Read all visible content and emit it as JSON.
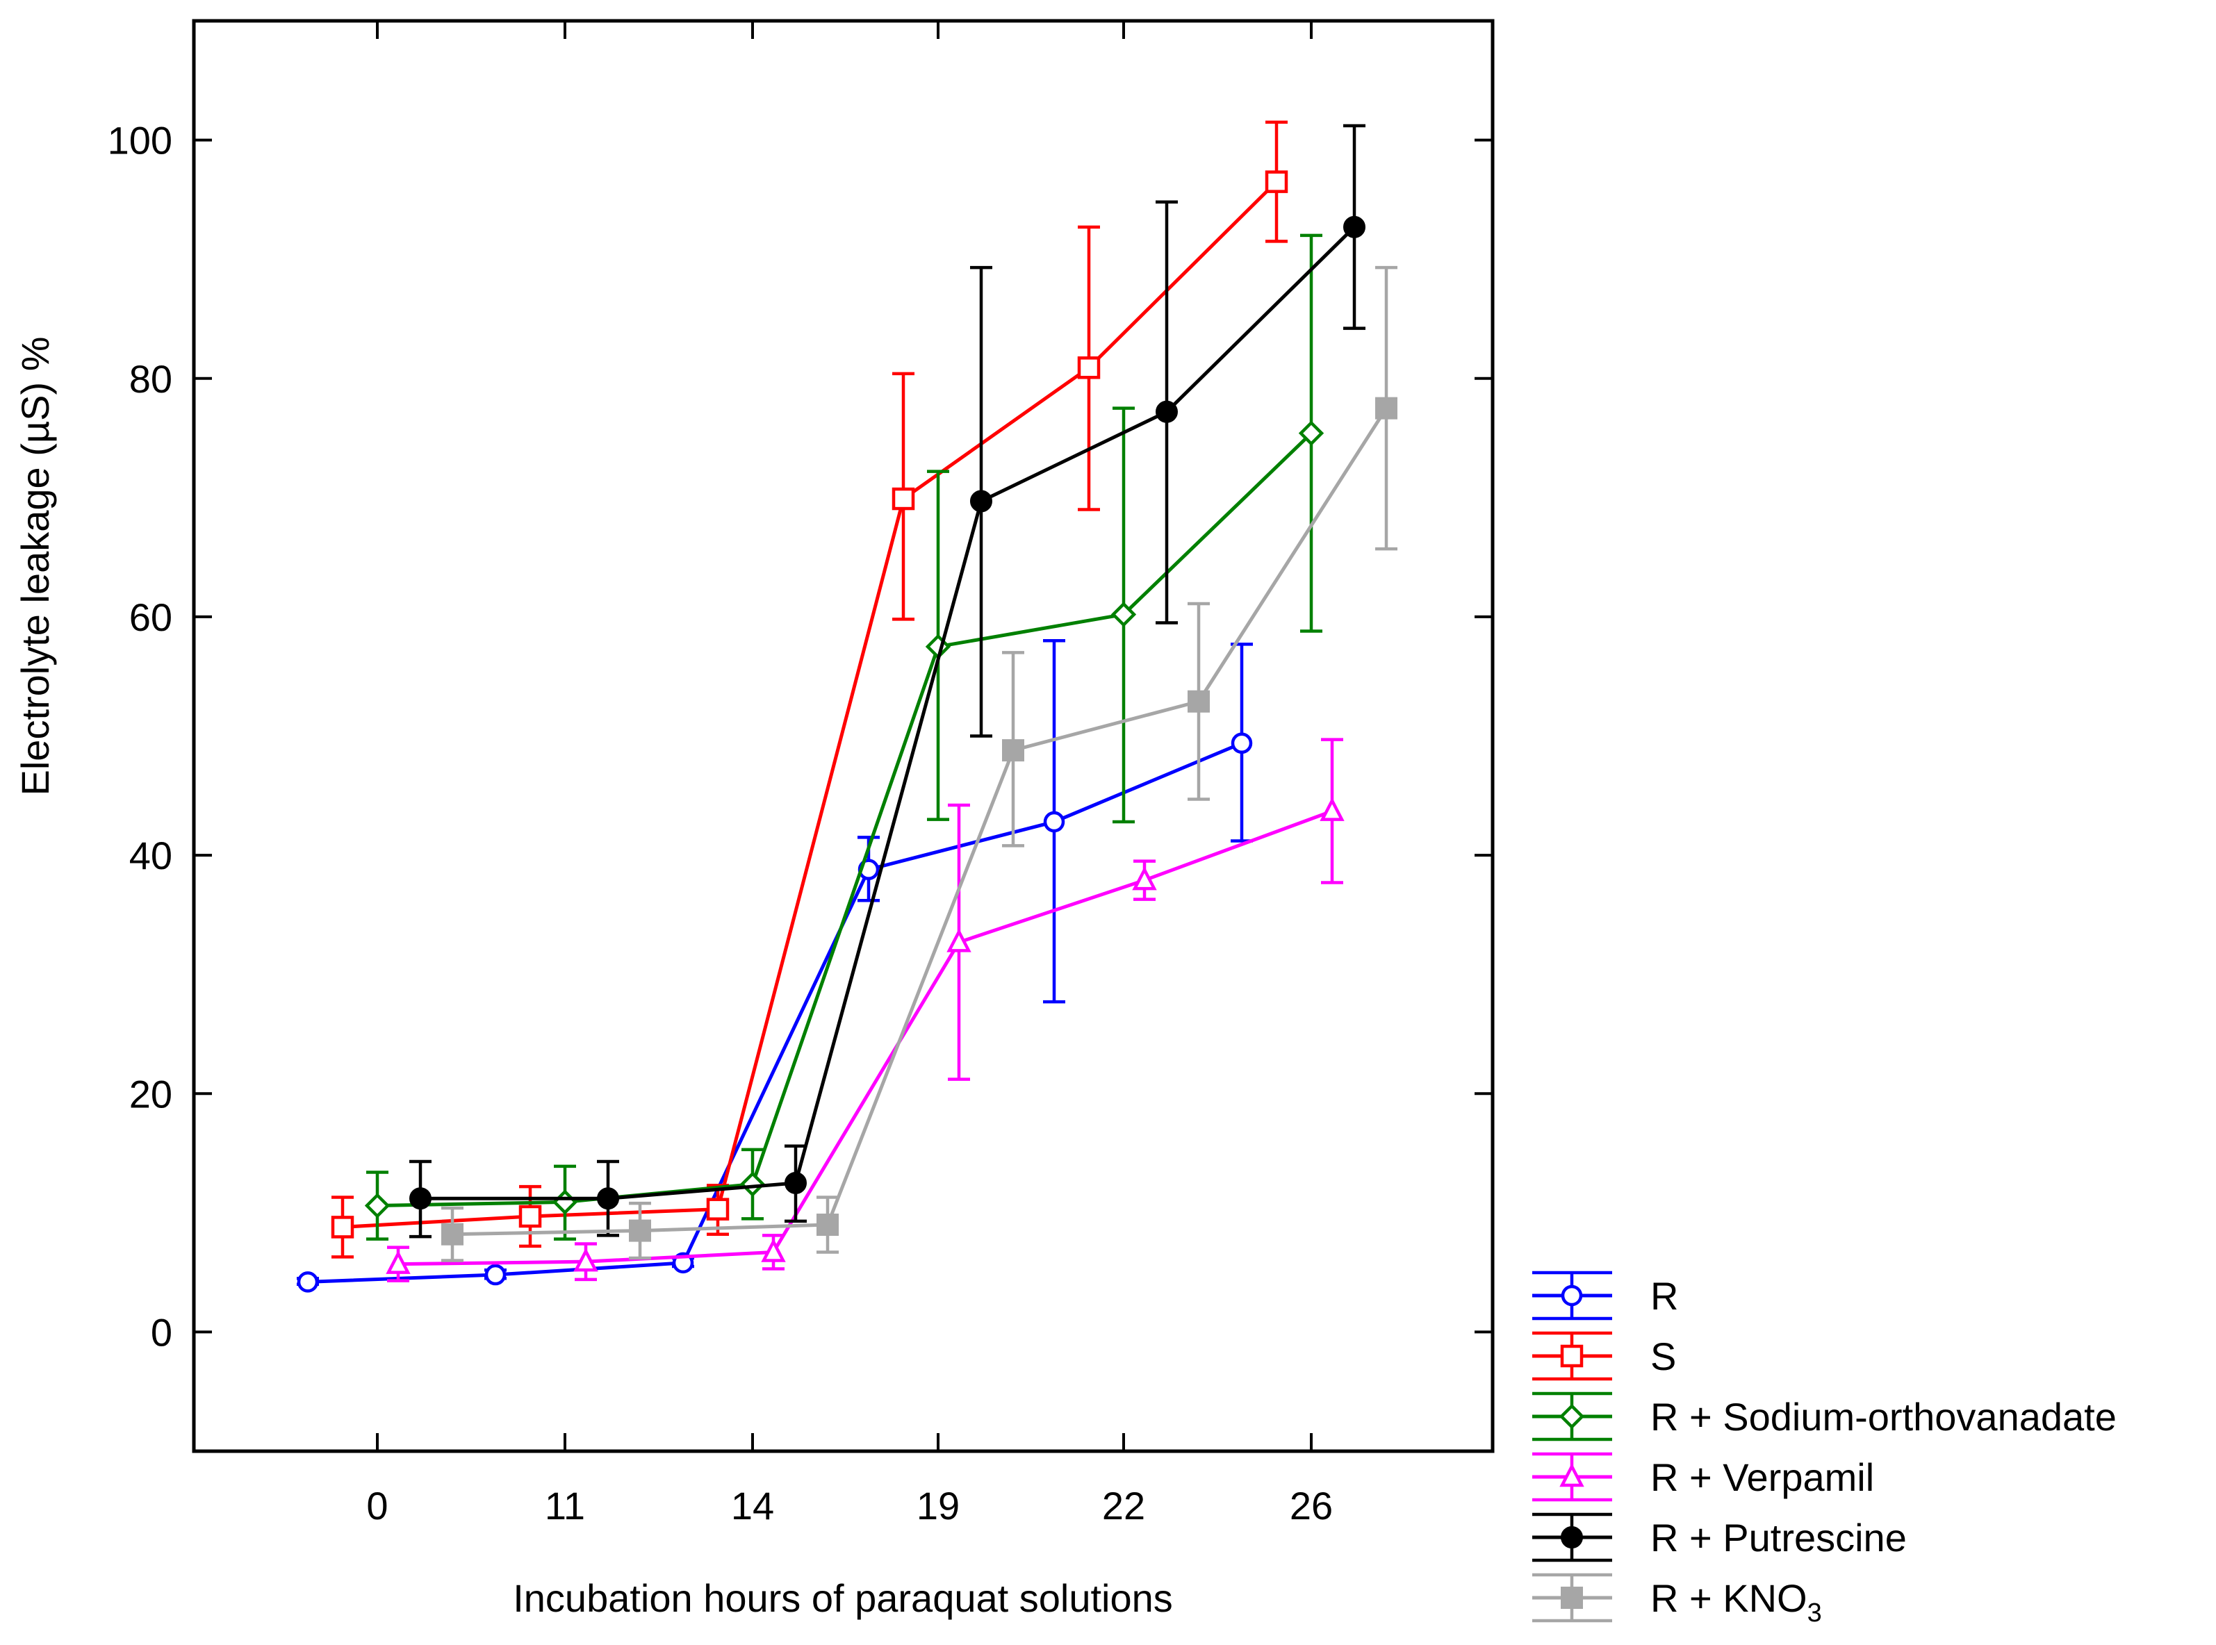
{
  "chart_data": {
    "type": "line",
    "title": "",
    "xlabel": "Incubation hours of paraquat solutions",
    "ylabel": "Electrolyte leakage (µS) %",
    "categories": [
      "0",
      "11",
      "14",
      "19",
      "22",
      "26"
    ],
    "ylim": [
      -10,
      110
    ],
    "yticks": [
      0,
      20,
      40,
      60,
      80,
      100
    ],
    "grid": false,
    "legend_position": "bottom-right, outside plot",
    "series": [
      {
        "name": "R",
        "color": "#0000ff",
        "marker": "circle-open",
        "values": [
          4.2,
          4.8,
          5.8,
          38.8,
          42.8,
          49.4
        ],
        "err_low": [
          4.0,
          4.5,
          5.5,
          36.2,
          27.7,
          41.2
        ],
        "err_high": [
          4.5,
          5.2,
          6.2,
          41.5,
          58.0,
          57.7
        ]
      },
      {
        "name": "S",
        "color": "#ff0000",
        "marker": "square-open",
        "values": [
          8.8,
          9.7,
          10.3,
          69.9,
          80.9,
          96.5
        ],
        "err_low": [
          6.3,
          7.2,
          8.2,
          59.8,
          69.0,
          91.5
        ],
        "err_high": [
          11.3,
          12.2,
          12.3,
          80.4,
          92.7,
          101.5
        ]
      },
      {
        "name": "R + Sodium-orthovanadate",
        "color": "#008000",
        "marker": "diamond-open",
        "values": [
          10.6,
          10.9,
          12.4,
          57.5,
          60.2,
          75.4
        ],
        "err_low": [
          7.8,
          7.8,
          9.5,
          43.0,
          42.8,
          58.8
        ],
        "err_high": [
          13.4,
          13.9,
          15.3,
          72.2,
          77.5,
          92.0
        ]
      },
      {
        "name": "R + Verpamil",
        "color": "#ff00ff",
        "marker": "triangle-open",
        "values": [
          5.7,
          5.9,
          6.7,
          32.7,
          37.9,
          43.7
        ],
        "err_low": [
          4.3,
          4.4,
          5.3,
          21.2,
          36.3,
          37.7
        ],
        "err_high": [
          7.1,
          7.4,
          8.1,
          44.2,
          39.5,
          49.7
        ]
      },
      {
        "name": "R + Putrescine",
        "color": "#000000",
        "marker": "circle-filled",
        "values": [
          11.2,
          11.2,
          12.5,
          69.7,
          77.2,
          92.7
        ],
        "err_low": [
          8.0,
          8.1,
          9.3,
          50.0,
          59.5,
          84.2
        ],
        "err_high": [
          14.3,
          14.3,
          15.6,
          89.3,
          94.8,
          101.2
        ]
      },
      {
        "name": "R + KNO",
        "name_subscript": "3",
        "color": "#a6a6a6",
        "marker": "square-filled",
        "values": [
          8.2,
          8.5,
          9.0,
          48.8,
          52.9,
          77.5
        ],
        "err_low": [
          6.0,
          6.2,
          6.7,
          40.8,
          44.7,
          65.7
        ],
        "err_high": [
          10.4,
          10.8,
          11.3,
          57.0,
          61.1,
          89.3
        ]
      }
    ]
  }
}
